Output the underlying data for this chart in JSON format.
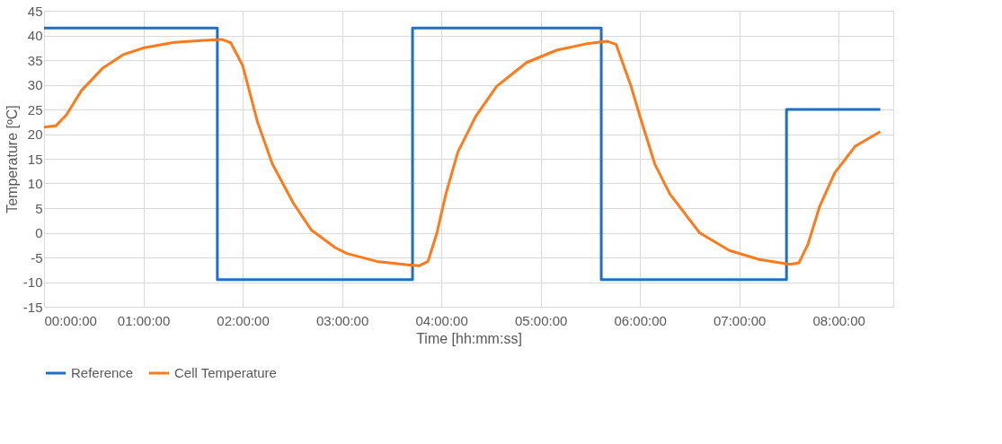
{
  "chart_data": {
    "type": "line",
    "xlabel": "Time [hh:mm:ss]",
    "ylabel": "Temperature [ºC]",
    "xlim": [
      0,
      8.55
    ],
    "ylim": [
      -15,
      45
    ],
    "xticks": [
      {
        "value": 0,
        "label": "00:00:00"
      },
      {
        "value": 1,
        "label": "01:00:00"
      },
      {
        "value": 2,
        "label": "02:00:00"
      },
      {
        "value": 3,
        "label": "03:00:00"
      },
      {
        "value": 4,
        "label": "04:00:00"
      },
      {
        "value": 5,
        "label": "05:00:00"
      },
      {
        "value": 6,
        "label": "06:00:00"
      },
      {
        "value": 7,
        "label": "07:00:00"
      },
      {
        "value": 8,
        "label": "08:00:00"
      }
    ],
    "yticks": [
      -15,
      -10,
      -5,
      0,
      5,
      10,
      15,
      20,
      25,
      30,
      35,
      40,
      45
    ],
    "grid": true,
    "legend": "bottom",
    "marker": "none",
    "line_style": "solid",
    "series": [
      {
        "name": "Reference",
        "color": "#1f6fc5",
        "x": [
          0,
          1.745,
          1.745,
          3.71,
          3.71,
          5.61,
          5.61,
          7.475,
          7.475,
          8.42
        ],
        "values": [
          41.5,
          41.5,
          -9.5,
          -9.5,
          41.5,
          41.5,
          -9.5,
          -9.5,
          25,
          25
        ]
      },
      {
        "name": "Cell Temperature",
        "color": "#ff7a1a",
        "x": [
          0,
          0.12,
          0.226,
          0.376,
          0.587,
          0.797,
          1.008,
          1.309,
          1.609,
          1.79,
          1.88,
          2.0,
          2.15,
          2.3,
          2.51,
          2.69,
          2.93,
          3.05,
          3.35,
          3.66,
          3.775,
          3.866,
          3.956,
          4.046,
          4.167,
          4.347,
          4.558,
          4.858,
          5.16,
          5.46,
          5.67,
          5.76,
          5.91,
          6.0,
          6.15,
          6.3,
          6.6,
          6.9,
          7.2,
          7.51,
          7.6,
          7.69,
          7.81,
          7.96,
          8.17,
          8.42
        ],
        "values": [
          21.4,
          21.7,
          23.9,
          28.8,
          33.3,
          36.1,
          37.5,
          38.6,
          39.0,
          39.2,
          38.5,
          33.9,
          22.4,
          13.9,
          6.0,
          0.6,
          -3.0,
          -4.2,
          -5.8,
          -6.5,
          -6.7,
          -5.8,
          0,
          7.9,
          16.4,
          23.6,
          29.7,
          34.5,
          37.0,
          38.3,
          38.8,
          38.2,
          29.7,
          23.6,
          13.9,
          7.9,
          0,
          -3.6,
          -5.4,
          -6.4,
          -6.1,
          -2.4,
          5.4,
          12.1,
          17.6,
          20.5
        ]
      }
    ]
  }
}
